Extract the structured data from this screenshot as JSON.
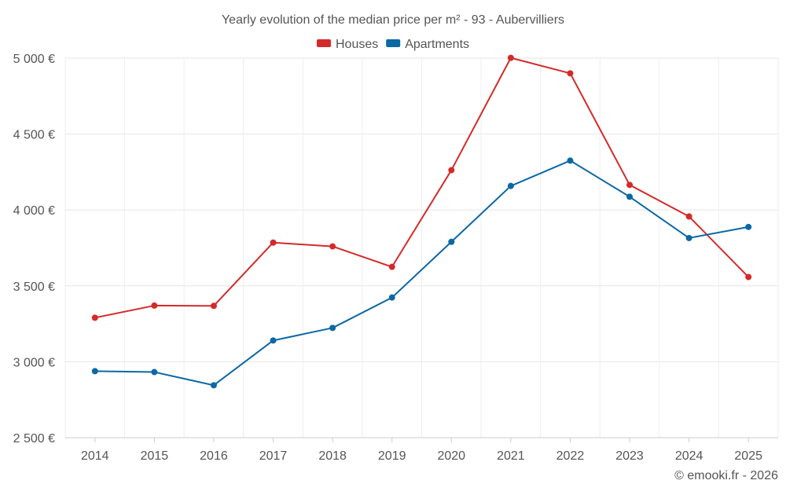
{
  "chart_data": {
    "type": "line",
    "title": "Yearly evolution of the median price per m² - 93 - Aubervilliers",
    "xlabel": "",
    "ylabel": "",
    "categories": [
      "2014",
      "2015",
      "2016",
      "2017",
      "2018",
      "2019",
      "2020",
      "2021",
      "2022",
      "2023",
      "2024",
      "2025"
    ],
    "ylim": [
      2500,
      5000
    ],
    "yticks": [
      2500,
      3000,
      3500,
      4000,
      4500,
      5000
    ],
    "ytick_labels": [
      "2 500 €",
      "3 000 €",
      "3 500 €",
      "4 000 €",
      "4 500 €",
      "5 000 €"
    ],
    "grid": true,
    "legend_position": "top-center",
    "series": [
      {
        "name": "Houses",
        "color": "#d42a2a",
        "values": [
          3290,
          3370,
          3368,
          3785,
          3760,
          3625,
          4262,
          5002,
          4900,
          4165,
          3957,
          3558
        ]
      },
      {
        "name": "Apartments",
        "color": "#0b68a4",
        "values": [
          2938,
          2932,
          2845,
          3140,
          3223,
          3423,
          3790,
          4158,
          4325,
          4087,
          3815,
          3888
        ]
      }
    ]
  },
  "footer": {
    "copyright": "© emooki.fr - 2026"
  }
}
